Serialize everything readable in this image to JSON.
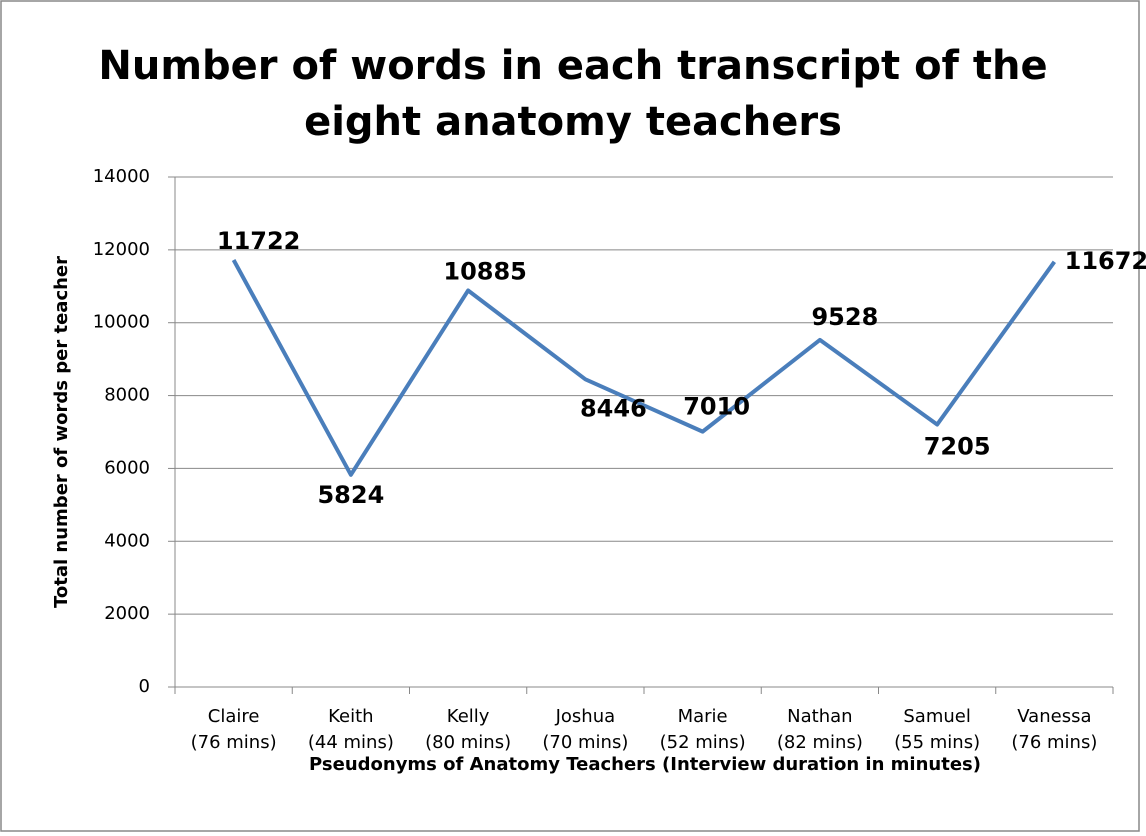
{
  "chart_data": {
    "type": "line",
    "title": "Number of words in each transcript of the\neight anatomy teachers",
    "x_label": "Pseudonyms of Anatomy Teachers (Interview duration in minutes)",
    "y_label": "Total number of words per teacher",
    "categories": [
      "Claire\n(76 mins)",
      "Keith\n(44 mins)",
      "Kelly\n(80 mins)",
      "Joshua\n(70 mins)",
      "Marie\n(52 mins)",
      "Nathan\n(82 mins)",
      "Samuel\n(55 mins)",
      "Vanessa\n(76 mins)"
    ],
    "values": [
      11722,
      5824,
      10885,
      8446,
      7010,
      9528,
      7205,
      11672
    ],
    "color": "#4a7ebb",
    "ylim": [
      0,
      14000
    ],
    "yticks": [
      0,
      2000,
      4000,
      6000,
      8000,
      10000,
      12000,
      14000
    ],
    "grid": true
  }
}
